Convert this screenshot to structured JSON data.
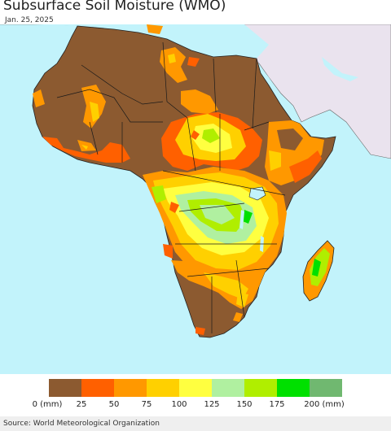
{
  "title": "Subsurface Soil Moisture (WMO)",
  "date": "Jan. 25, 2025",
  "source": "Source: World Meteorological Organization",
  "colors": {
    "ocean": "#c2f3fb",
    "outside": "#eae3ee",
    "land_dry": "#8c5a30",
    "border": "#1a1a1a"
  },
  "legend": {
    "colors": [
      "#8c5a30",
      "#ff6000",
      "#ff9800",
      "#ffd000",
      "#ffff40",
      "#b0f0a0",
      "#b0ee00",
      "#00e000",
      "#70b870"
    ],
    "labels": [
      "0 (mm)",
      "25",
      "50",
      "75",
      "100",
      "125",
      "150",
      "175",
      "200 (mm)"
    ]
  }
}
